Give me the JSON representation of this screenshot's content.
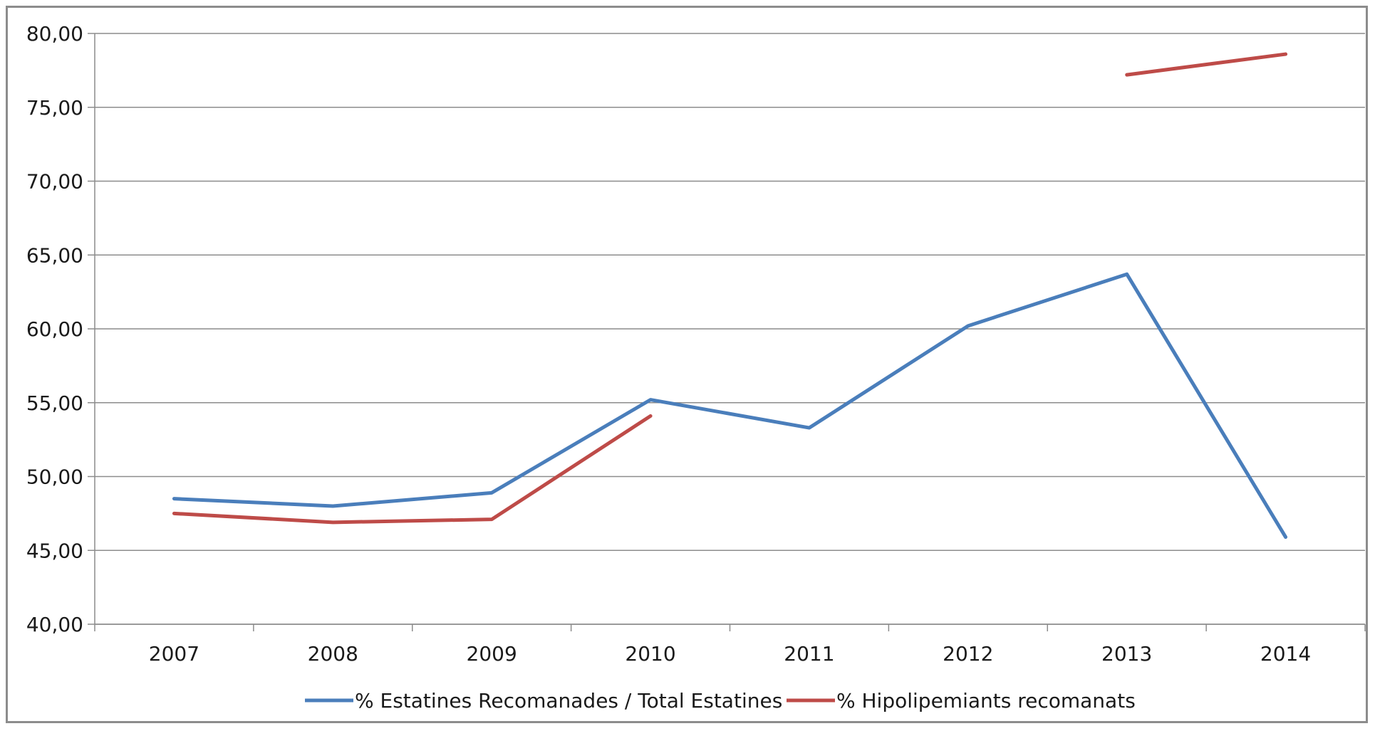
{
  "chart_data": {
    "type": "line",
    "title": "",
    "xlabel": "",
    "ylabel": "",
    "categories": [
      "2007",
      "2008",
      "2009",
      "2010",
      "2011",
      "2012",
      "2013",
      "2014"
    ],
    "ylim": [
      40,
      80
    ],
    "yticks": [
      "40,00",
      "45,00",
      "50,00",
      "55,00",
      "60,00",
      "65,00",
      "70,00",
      "75,00",
      "80,00"
    ],
    "grid": true,
    "legend_position": "bottom",
    "series": [
      {
        "name": "% Estatines Recomanades / Total Estatines",
        "color": "#4a7ebb",
        "values": [
          48.5,
          48.0,
          48.9,
          55.2,
          53.3,
          60.2,
          63.7,
          45.9
        ]
      },
      {
        "name": "% Hipolipemiants recomanats",
        "color": "#be4b48",
        "values": [
          47.5,
          46.9,
          47.1,
          54.1,
          null,
          null,
          77.2,
          78.6
        ]
      }
    ]
  }
}
